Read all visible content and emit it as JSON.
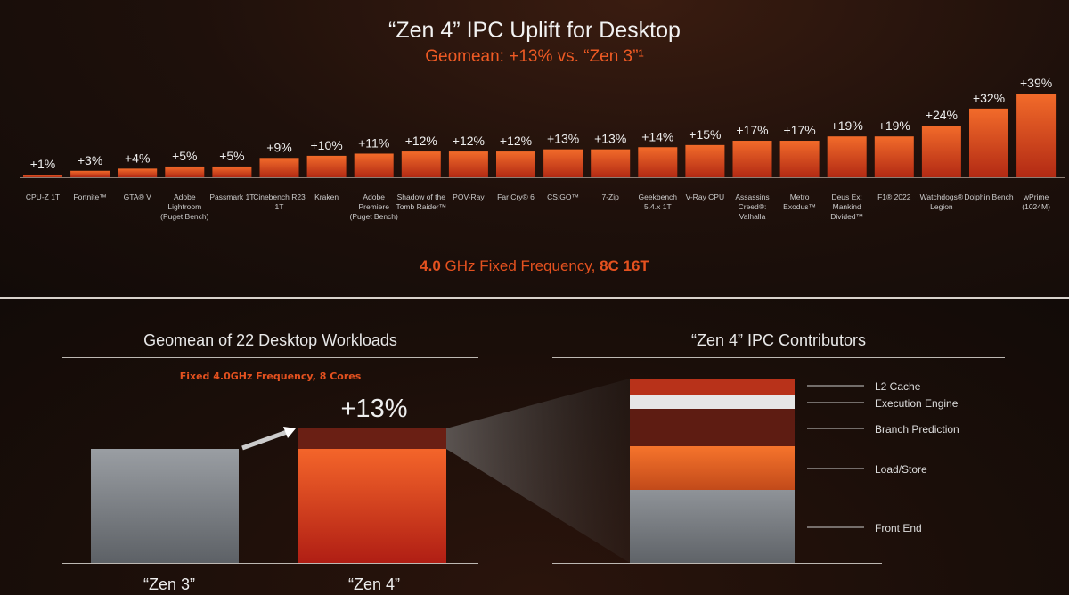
{
  "header": {
    "title": "“Zen 4” IPC Uplift for Desktop",
    "subtitle": "Geomean: +13% vs. “Zen 3”¹"
  },
  "footer": {
    "freq_bold1": "4.0",
    "freq_mid": " GHz Fixed Frequency, ",
    "freq_bold2": "8C 16T"
  },
  "colors": {
    "accent": "#ee5a24",
    "bar_top": "#f06a2a",
    "bar_bottom": "#b52a14",
    "zen3": "#8a8e93",
    "dark_red": "#6a1f14"
  },
  "chart_data": [
    {
      "type": "bar",
      "title": "“Zen 4” IPC Uplift for Desktop",
      "subtitle": "Geomean: +13% vs. “Zen 3”¹",
      "categories": [
        "CPU-Z 1T",
        "Fortnite™",
        "GTA® V",
        "Adobe Lightroom (Puget Bench)",
        "Passmark 1T",
        "Cinebench R23 1T",
        "Kraken",
        "Adobe Premiere (Puget Bench)",
        "Shadow of the Tomb Raider™",
        "POV-Ray",
        "Far Cry® 6",
        "CS:GO™",
        "7-Zip",
        "Geekbench 5.4.x 1T",
        "V-Ray CPU",
        "Assassins Creed®: Valhalla",
        "Metro Exodus™",
        "Deus Ex: Mankind Divided™",
        "F1® 2022",
        "Watchdogs® Legion",
        "Dolphin Bench",
        "wPrime (1024M)"
      ],
      "category_lines": [
        [
          "CPU-Z 1T"
        ],
        [
          "Fortnite™"
        ],
        [
          "GTA® V"
        ],
        [
          "Adobe",
          "Lightroom",
          "(Puget Bench)"
        ],
        [
          "Passmark 1T"
        ],
        [
          "Cinebench R23",
          "1T"
        ],
        [
          "Kraken"
        ],
        [
          "Adobe",
          "Premiere",
          "(Puget Bench)"
        ],
        [
          "Shadow of the",
          "Tomb Raider™"
        ],
        [
          "POV-Ray"
        ],
        [
          "Far Cry® 6"
        ],
        [
          "CS:GO™"
        ],
        [
          "7-Zip"
        ],
        [
          "Geekbench",
          "5.4.x 1T"
        ],
        [
          "V-Ray CPU"
        ],
        [
          "Assassins",
          "Creed®:",
          "Valhalla"
        ],
        [
          "Metro",
          "Exodus™"
        ],
        [
          "Deus Ex:",
          "Mankind",
          "Divided™"
        ],
        [
          "F1® 2022"
        ],
        [
          "Watchdogs®",
          "Legion"
        ],
        [
          "Dolphin Bench"
        ],
        [
          "wPrime",
          "(1024M)"
        ]
      ],
      "values": [
        1,
        3,
        4,
        5,
        5,
        9,
        10,
        11,
        12,
        12,
        12,
        13,
        13,
        14,
        15,
        17,
        17,
        19,
        19,
        24,
        32,
        39
      ],
      "data_labels": [
        "+1%",
        "+3%",
        "+4%",
        "+5%",
        "+5%",
        "+9%",
        "+10%",
        "+11%",
        "+12%",
        "+12%",
        "+12%",
        "+13%",
        "+13%",
        "+14%",
        "+15%",
        "+17%",
        "+17%",
        "+19%",
        "+19%",
        "+24%",
        "+32%",
        "+39%"
      ],
      "ylim": [
        0,
        40
      ],
      "grid": false,
      "unit": "%"
    },
    {
      "type": "bar",
      "title": "Geomean of 22 Desktop Workloads",
      "subtitle": "Fixed 4.0GHz Frequency, 8 Cores",
      "categories": [
        "“Zen 3”",
        "“Zen 4”"
      ],
      "values": [
        100,
        113
      ],
      "annotation": "+13%"
    },
    {
      "type": "bar",
      "title": "“Zen 4” IPC Contributors",
      "stacked": true,
      "series": [
        {
          "name": "Front End",
          "share": 0.4,
          "color": "#8a8e93"
        },
        {
          "name": "Load/Store",
          "share": 0.24,
          "color": "#f06a2a"
        },
        {
          "name": "Branch Prediction",
          "share": 0.2,
          "color": "#5e1c12"
        },
        {
          "name": "Execution Engine",
          "share": 0.08,
          "color": "#e6e6e6"
        },
        {
          "name": "L2 Cache",
          "share": 0.08,
          "color": "#b8321a"
        }
      ]
    }
  ]
}
